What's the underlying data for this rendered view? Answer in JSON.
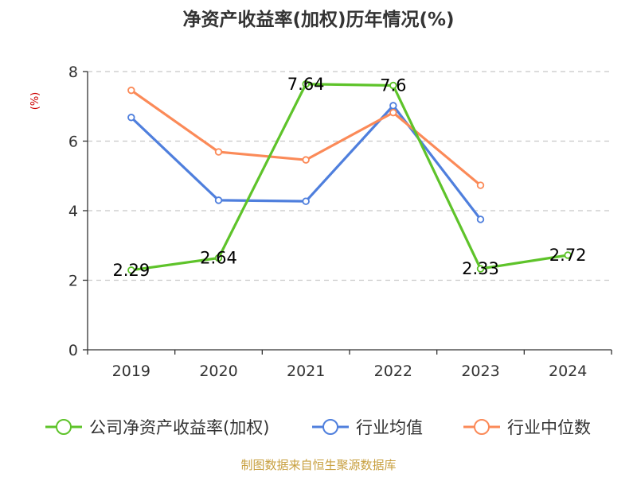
{
  "chart_data": {
    "type": "line",
    "title": "净资产收益率(加权)历年情况(%)",
    "ylabel": "(%)",
    "xlabel": "",
    "categories": [
      "2019",
      "2020",
      "2021",
      "2022",
      "2023",
      "2024"
    ],
    "ylim": [
      0,
      8
    ],
    "yticks": [
      0,
      2,
      4,
      6,
      8
    ],
    "grid": true,
    "legend_position": "bottom",
    "series": [
      {
        "name": "公司净资产收益率(加权)",
        "color": "#5ec32a",
        "values": [
          2.29,
          2.64,
          7.64,
          7.6,
          2.33,
          2.72
        ],
        "data_labels": [
          "2.29",
          "2.64",
          "7.64",
          "7.6",
          "2.33",
          "2.72"
        ]
      },
      {
        "name": "行业均值",
        "color": "#4f7fdd",
        "values": [
          6.68,
          4.3,
          4.27,
          7.02,
          3.75,
          null
        ]
      },
      {
        "name": "行业中位数",
        "color": "#fb8a58",
        "values": [
          7.46,
          5.69,
          5.46,
          6.82,
          4.73,
          null
        ]
      }
    ]
  },
  "source_text": "制图数据来自恒生聚源数据库",
  "colors": {
    "title": "#333333",
    "ylabel": "#cc0000",
    "source": "#c8a040",
    "grid": "#c8c8c8",
    "axis": "#333333"
  }
}
